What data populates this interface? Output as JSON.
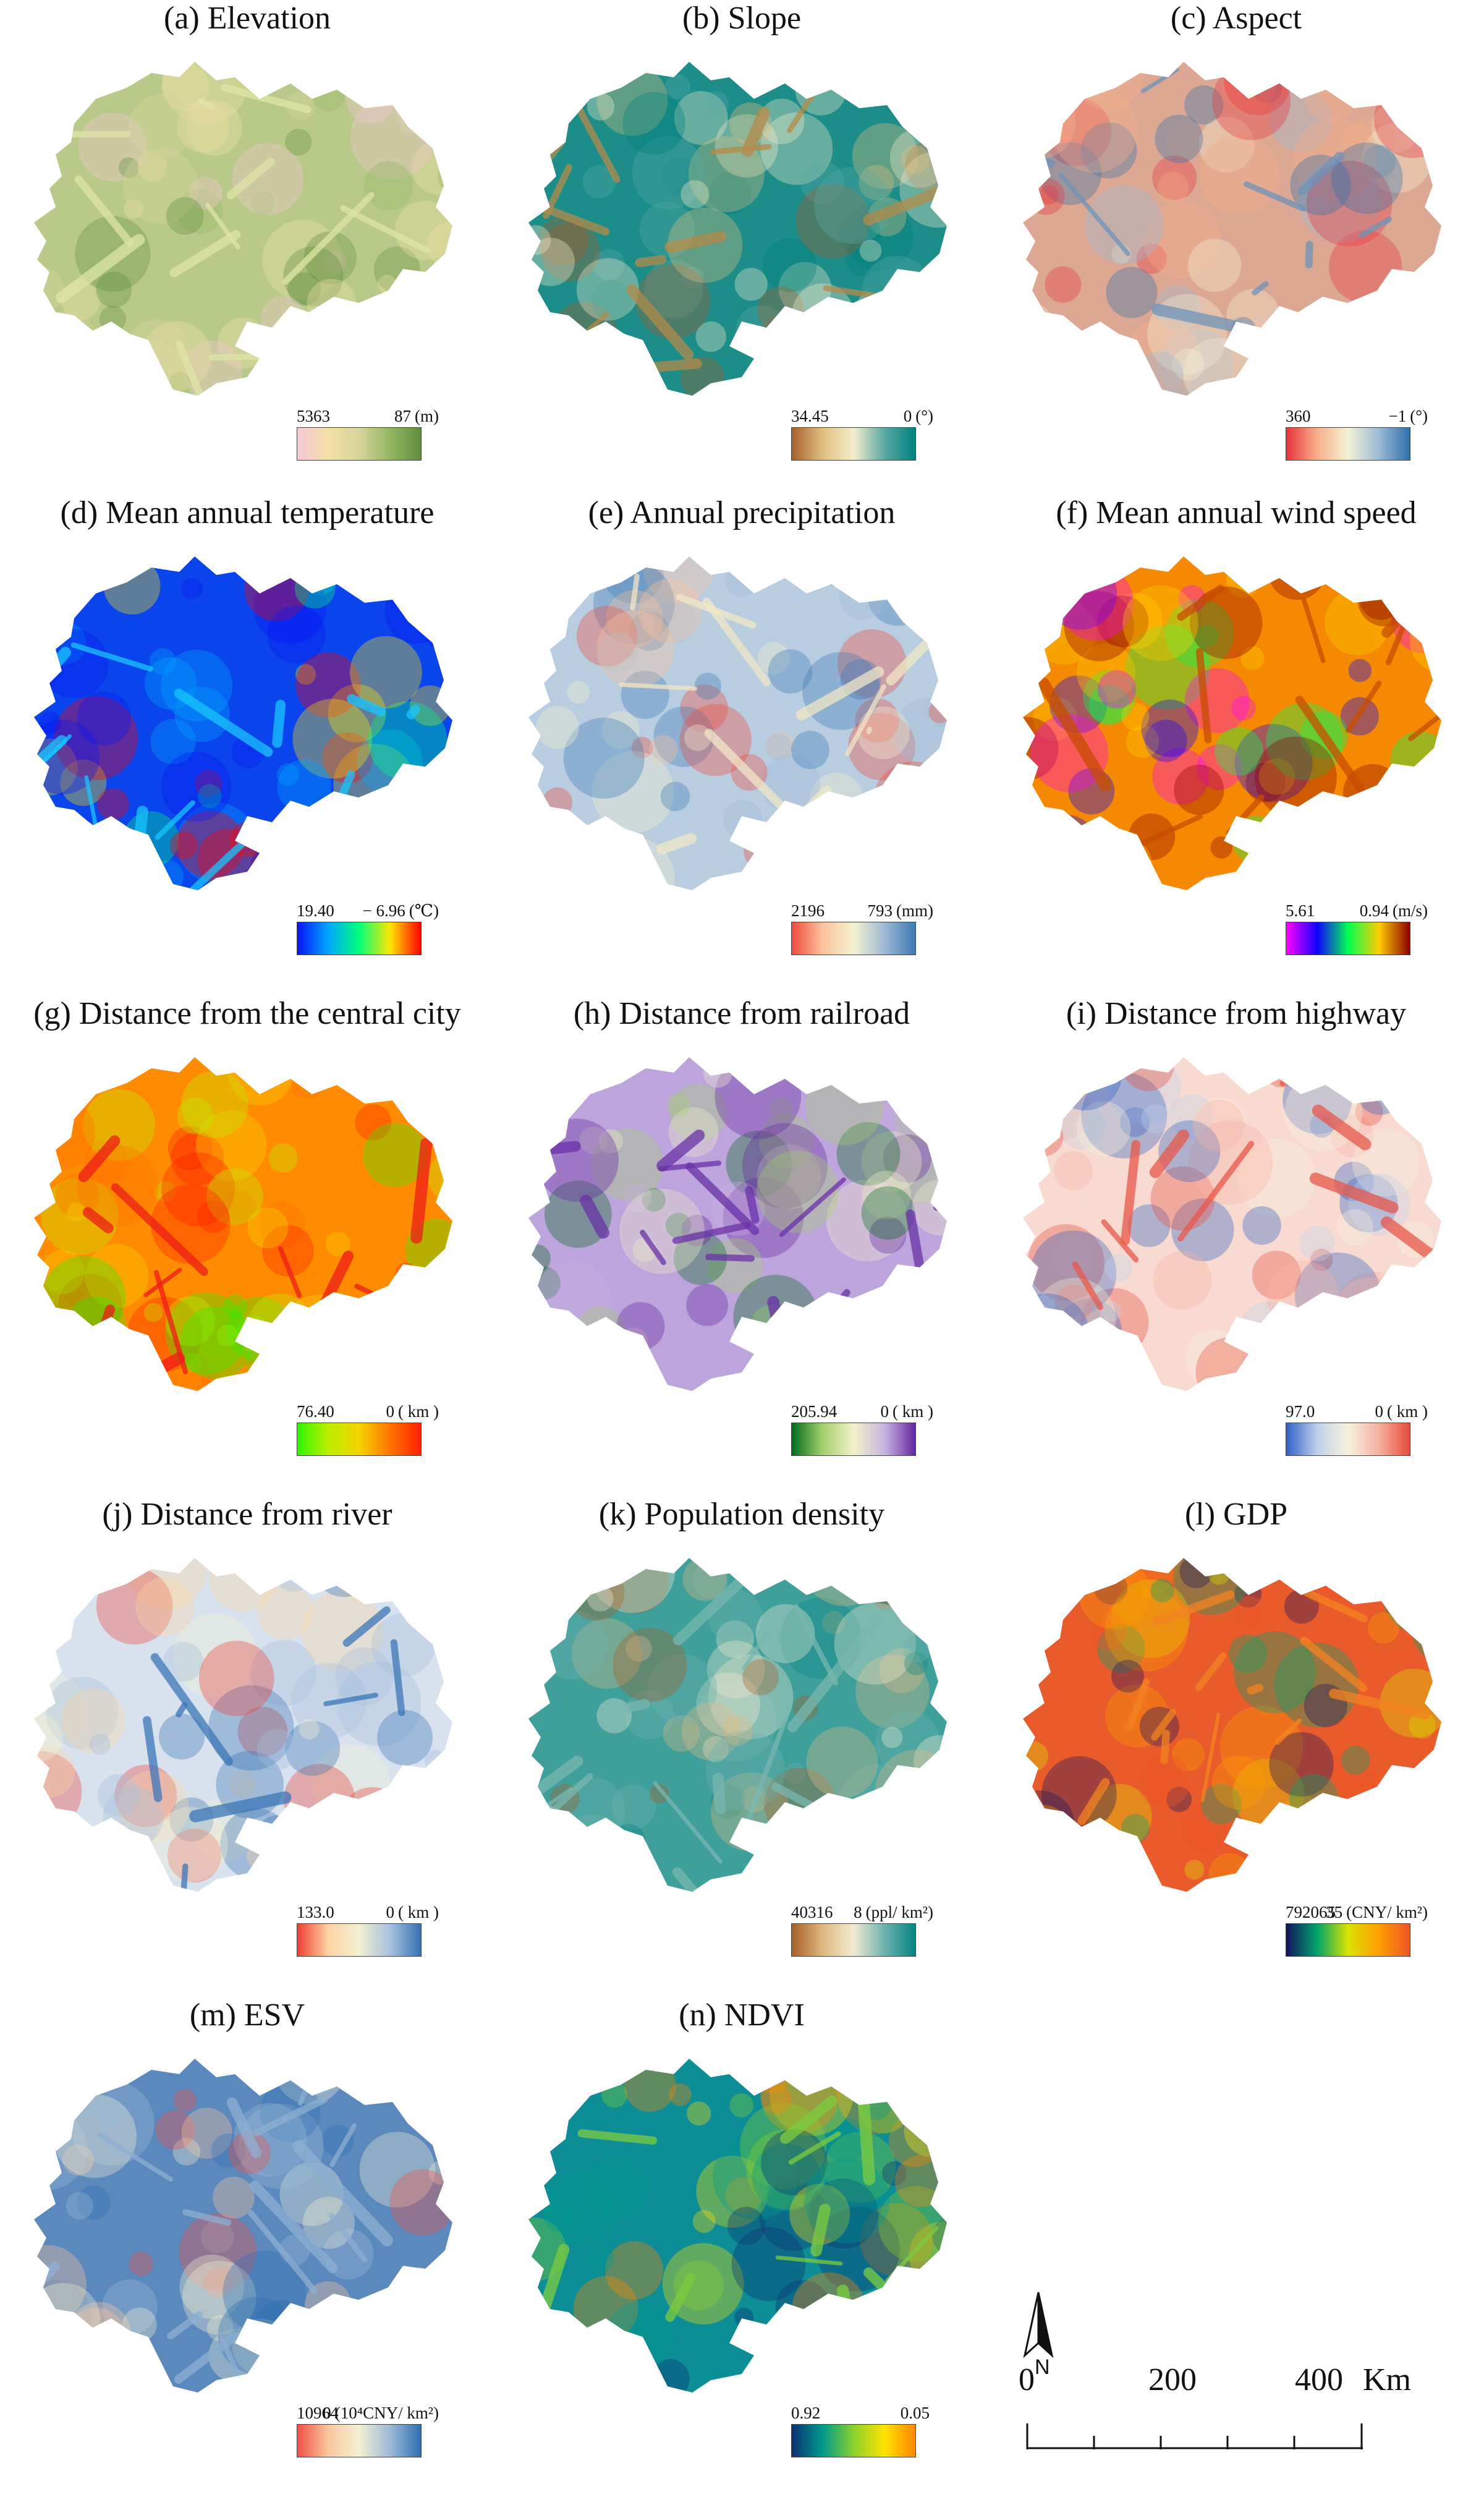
{
  "panels": [
    {
      "id": "a",
      "title": "(a) Elevation",
      "legend": {
        "min": "5363",
        "max": "87",
        "unit": "(m)"
      },
      "colors": [
        "#f7c7d7",
        "#f2dfa5",
        "#d8d59b",
        "#93b760",
        "#5f8e3f"
      ],
      "base": "#b9c98a",
      "texture": "#dfe6a7"
    },
    {
      "id": "b",
      "title": "(b) Slope",
      "legend": {
        "min": "34.45",
        "max": "0",
        "unit": "(°)"
      },
      "colors": [
        "#a85f2a",
        "#e0c07e",
        "#f5edcc",
        "#5aa9a4",
        "#00827f"
      ],
      "base": "#1d8d89",
      "texture": "#b38b4a"
    },
    {
      "id": "c",
      "title": "(c) Aspect",
      "legend": {
        "min": "360",
        "max": "−1",
        "unit": "(°)"
      },
      "colors": [
        "#e7333b",
        "#f7b08a",
        "#f4f2d6",
        "#9bbad4",
        "#2f70ac"
      ],
      "base": "#dca894",
      "texture": "#6f93b9"
    },
    {
      "id": "d",
      "title": "(d) Mean annual temperature",
      "legend": {
        "min": "19.40",
        "max": "− 6.96",
        "unit": "(℃)"
      },
      "colors": [
        "#0814f7",
        "#00a6ff",
        "#00ff7a",
        "#ffe700",
        "#ff0000"
      ],
      "base": "#0a44ec",
      "texture": "#19c6ff"
    },
    {
      "id": "e",
      "title": "(e) Annual precipitation",
      "legend": {
        "min": "2196",
        "max": "793",
        "unit": "(mm)"
      },
      "colors": [
        "#f04a3c",
        "#fbc39d",
        "#f5f1cf",
        "#9dbad4",
        "#3d79b5"
      ],
      "base": "#b8cde0",
      "texture": "#f1e7c6"
    },
    {
      "id": "f",
      "title": "(f) Mean annual wind speed",
      "legend": {
        "min": "5.61",
        "max": "0.94",
        "unit": "(m/s)"
      },
      "colors": [
        "#ff00ff",
        "#1100ff",
        "#00ff52",
        "#ffce00",
        "#8c0000"
      ],
      "base": "#f58a02",
      "texture": "#c84d00"
    },
    {
      "id": "g",
      "title": "(g) Distance from the central city",
      "legend": {
        "min": "76.40",
        "max": "0",
        "unit": "( km )"
      },
      "colors": [
        "#2df200",
        "#bef100",
        "#f5d400",
        "#ff7400",
        "#ff1f00"
      ],
      "base": "#ff8b00",
      "texture": "#ee1d18"
    },
    {
      "id": "h",
      "title": "(h) Distance from railroad",
      "legend": {
        "min": "205.94",
        "max": "0",
        "unit": "( km )"
      },
      "colors": [
        "#006d1c",
        "#a4d06c",
        "#f2f1c8",
        "#c8b5e1",
        "#6526a1"
      ],
      "base": "#bda4dc",
      "texture": "#6a32a8"
    },
    {
      "id": "i",
      "title": "(i) Distance from highway",
      "legend": {
        "min": "97.0",
        "max": "0",
        "unit": "( km )"
      },
      "colors": [
        "#2f61c4",
        "#c0d0ea",
        "#f7f2dc",
        "#f5b1a2",
        "#e74c3d"
      ],
      "base": "#f8dad1",
      "texture": "#e7584a"
    },
    {
      "id": "j",
      "title": "(j) Distance from river",
      "legend": {
        "min": "133.0",
        "max": "0",
        "unit": "( km )"
      },
      "colors": [
        "#ef4033",
        "#fcd3a4",
        "#f3f0d0",
        "#a7c1de",
        "#3672b3"
      ],
      "base": "#d8e2ef",
      "texture": "#3b76b7"
    },
    {
      "id": "k",
      "title": "(k) Population density",
      "legend": {
        "min": "40316",
        "max": "8",
        "unit": "(ppl/ km²)"
      },
      "colors": [
        "#a85f25",
        "#deb981",
        "#f3ead2",
        "#6cb3ae",
        "#058482"
      ],
      "base": "#3e9f9b",
      "texture": "#78b7b0"
    },
    {
      "id": "l",
      "title": "(l) GDP",
      "legend": {
        "min": "792065",
        "max": "35",
        "unit": "(CNY/ km²)"
      },
      "colors": [
        "#14135f",
        "#00a46a",
        "#dbe200",
        "#ff9e00",
        "#ed5627"
      ],
      "base": "#ea5b2b",
      "texture": "#f48321"
    },
    {
      "id": "m",
      "title": "(m) ESV",
      "legend": {
        "min": "10964",
        "max": "0",
        "unit": "(10⁴CNY/ km²)"
      },
      "colors": [
        "#f15045",
        "#f9c79f",
        "#f3f0d2",
        "#9dbad6",
        "#2e6fb1"
      ],
      "base": "#5b88bd",
      "texture": "#8eafd2"
    },
    {
      "id": "n",
      "title": "(n) NDVI",
      "legend": {
        "min": "0.92",
        "max": "0.05",
        "unit": ""
      },
      "colors": [
        "#0b2f74",
        "#009a8c",
        "#89d12b",
        "#ffe300",
        "#ff8700"
      ],
      "base": "#0d8d96",
      "texture": "#7ccc3f"
    }
  ],
  "scale_bar": {
    "ticks": [
      "0",
      "200",
      "400"
    ],
    "unit": "Km",
    "north_label": "N"
  }
}
